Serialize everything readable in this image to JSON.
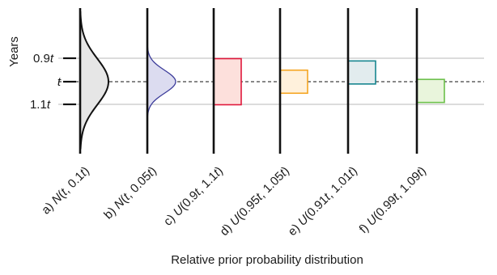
{
  "y_axis": {
    "label": "Years",
    "ticks": [
      {
        "prefix": "0.9",
        "var": "t"
      },
      {
        "prefix": "",
        "var": "t"
      },
      {
        "prefix": "1.1",
        "var": "t"
      }
    ]
  },
  "x_axis_label": "Relative prior probability distribution",
  "panels": [
    {
      "label_parts": [
        "a) ",
        "N",
        "(",
        "t",
        ", 0.1",
        "t",
        ")"
      ],
      "kind": "normal",
      "sd": 0.1,
      "stroke": "#111111",
      "fill": "#e6e6e6"
    },
    {
      "label_parts": [
        "b) ",
        "N",
        "(",
        "t",
        ", 0.05",
        "t",
        ")"
      ],
      "kind": "normal",
      "sd": 0.05,
      "stroke": "#3b3b9a",
      "fill": "#dcdcf0"
    },
    {
      "label_parts": [
        "c) ",
        "U",
        "(0.9",
        "t",
        ", 1.1",
        "t",
        ")"
      ],
      "kind": "uniform",
      "low": 0.9,
      "high": 1.1,
      "stroke": "#e0183c",
      "fill": "#fde0dc"
    },
    {
      "label_parts": [
        "d) ",
        "U",
        "(0.95",
        "t",
        ", 1.05",
        "t",
        ")"
      ],
      "kind": "uniform",
      "low": 0.95,
      "high": 1.05,
      "stroke": "#f5a623",
      "fill": "#fff1dc"
    },
    {
      "label_parts": [
        "e) ",
        "U",
        "(0.91",
        "t",
        ", 1.01",
        "t",
        ")"
      ],
      "kind": "uniform",
      "low": 0.91,
      "high": 1.01,
      "stroke": "#17868f",
      "fill": "#e2ecee"
    },
    {
      "label_parts": [
        "f) ",
        "U",
        "(0.99",
        "t",
        ", 1.09",
        "t",
        ")"
      ],
      "kind": "uniform",
      "low": 0.99,
      "high": 1.09,
      "stroke": "#6cc04a",
      "fill": "#e9f5dc"
    }
  ],
  "colors": {
    "gridline": "#c8c8c8",
    "axis": "#111111"
  }
}
